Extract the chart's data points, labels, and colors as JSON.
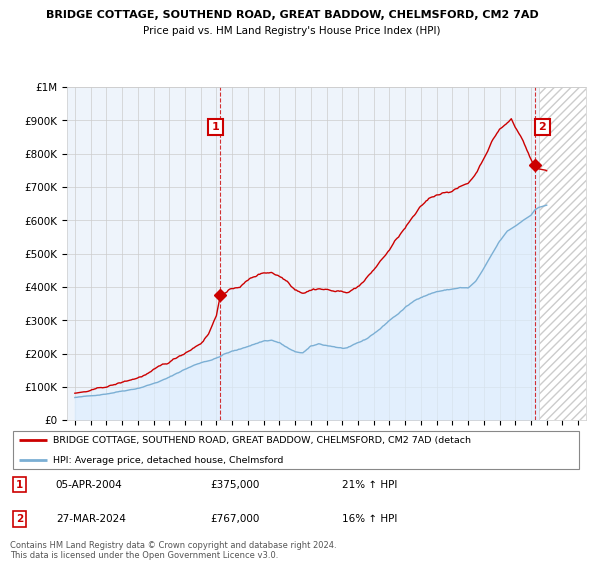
{
  "title1": "BRIDGE COTTAGE, SOUTHEND ROAD, GREAT BADDOW, CHELMSFORD, CM2 7AD",
  "title2": "Price paid vs. HM Land Registry's House Price Index (HPI)",
  "legend_label1": "BRIDGE COTTAGE, SOUTHEND ROAD, GREAT BADDOW, CHELMSFORD, CM2 7AD (detach",
  "legend_label2": "HPI: Average price, detached house, Chelmsford",
  "annotation1_label": "1",
  "annotation1_date": "05-APR-2004",
  "annotation1_price": "£375,000",
  "annotation1_hpi": "21% ↑ HPI",
  "annotation2_label": "2",
  "annotation2_date": "27-MAR-2024",
  "annotation2_price": "£767,000",
  "annotation2_hpi": "16% ↑ HPI",
  "footer": "Contains HM Land Registry data © Crown copyright and database right 2024.\nThis data is licensed under the Open Government Licence v3.0.",
  "line1_color": "#cc0000",
  "line2_color": "#7bafd4",
  "fill_color": "#ddeeff",
  "vline_color": "#cc0000",
  "annotation_box_color": "#cc0000",
  "grid_color": "#cccccc",
  "bg_color": "#eef4fb",
  "ylim": [
    0,
    1000000
  ],
  "yticks": [
    0,
    100000,
    200000,
    300000,
    400000,
    500000,
    600000,
    700000,
    800000,
    900000,
    1000000
  ],
  "ytick_labels": [
    "£0",
    "£100K",
    "£200K",
    "£300K",
    "£400K",
    "£500K",
    "£600K",
    "£700K",
    "£800K",
    "£900K",
    "£1M"
  ],
  "point1_x": 2004.25,
  "point1_y": 375000,
  "point2_x": 2024.23,
  "point2_y": 767000,
  "xmin": 1995.0,
  "xmax": 2027.5,
  "hatch_start": 2024.5
}
